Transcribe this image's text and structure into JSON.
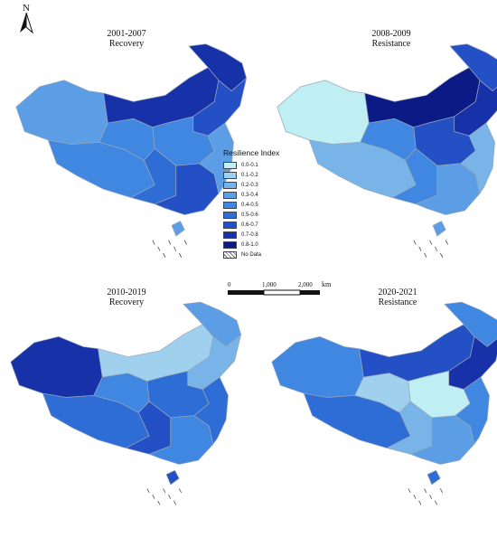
{
  "panels": [
    {
      "title_line1": "2001-2007",
      "title_line2": "Recovery"
    },
    {
      "title_line1": "2008-2009",
      "title_line2": "Resistance"
    },
    {
      "title_line1": "2010-2019",
      "title_line2": "Recovery"
    },
    {
      "title_line1": "2020-2021",
      "title_line2": "Resistance"
    }
  ],
  "legend": {
    "title": "Resilience Index",
    "items": [
      {
        "label": "0.0-0.1",
        "color": "#bfeef3"
      },
      {
        "label": "0.1-0.2",
        "color": "#9fd0ee"
      },
      {
        "label": "0.2-0.3",
        "color": "#78b4e8"
      },
      {
        "label": "0.3-0.4",
        "color": "#5b9ee6"
      },
      {
        "label": "0.4-0.5",
        "color": "#3f87e0"
      },
      {
        "label": "0.5-0.6",
        "color": "#2f6dd6"
      },
      {
        "label": "0.6-0.7",
        "color": "#2350c4"
      },
      {
        "label": "0.7-0.8",
        "color": "#1732a8"
      },
      {
        "label": "0.8-1.0",
        "color": "#0c1a85"
      }
    ],
    "nodata_label": "No Data"
  },
  "scale": {
    "label_0": "0",
    "label_1": "1,000",
    "label_2": "2,000",
    "unit": "km"
  },
  "north": {
    "label": "N",
    "icon": "north-arrow-icon"
  },
  "region_colors": {
    "p1": {
      "xinjiang": "#5b9ee6",
      "tibet": "#3f87e0",
      "qinghai": "#3f87e0",
      "inner_mongolia": "#1732a8",
      "heilongjiang": "#1732a8",
      "north": "#2350c4",
      "center": "#3f87e0",
      "southwest": "#2f6dd6",
      "south": "#2350c4",
      "east": "#5b9ee6",
      "hainan": "#5b9ee6"
    },
    "p2": {
      "xinjiang": "#bfeef3",
      "tibet": "#78b4e8",
      "qinghai": "#3f87e0",
      "inner_mongolia": "#0c1a85",
      "heilongjiang": "#2350c4",
      "north": "#1732a8",
      "center": "#2350c4",
      "southwest": "#3f87e0",
      "south": "#5b9ee6",
      "east": "#78b4e8",
      "hainan": "#5b9ee6"
    },
    "p3": {
      "xinjiang": "#1732a8",
      "tibet": "#2f6dd6",
      "qinghai": "#3f87e0",
      "inner_mongolia": "#9fd0ee",
      "heilongjiang": "#5b9ee6",
      "north": "#78b4e8",
      "center": "#2f6dd6",
      "southwest": "#2350c4",
      "south": "#3f87e0",
      "east": "#2f6dd6",
      "hainan": "#2350c4"
    },
    "p4": {
      "xinjiang": "#3f87e0",
      "tibet": "#2f6dd6",
      "qinghai": "#9fd0ee",
      "inner_mongolia": "#2350c4",
      "heilongjiang": "#3f87e0",
      "north": "#1732a8",
      "center": "#bfeef3",
      "southwest": "#78b4e8",
      "south": "#5b9ee6",
      "east": "#3f87e0",
      "hainan": "#2f6dd6"
    }
  }
}
